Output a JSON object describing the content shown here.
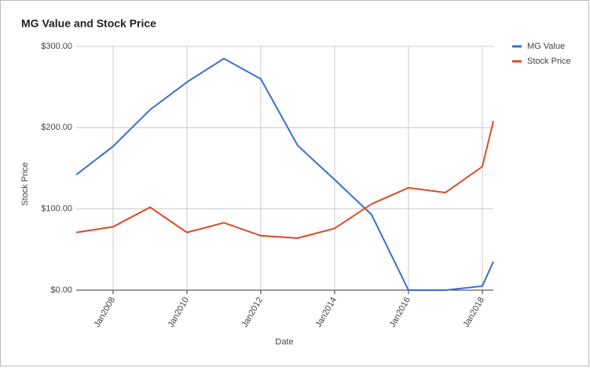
{
  "chart_data": {
    "type": "line",
    "title": "MG Value and Stock Price",
    "x_label": "Date",
    "y_label": "Stock Price",
    "x": [
      2007,
      2008,
      2009,
      2010,
      2011,
      2012,
      2013,
      2014,
      2015,
      2016,
      2017,
      2018,
      2018.3
    ],
    "series": [
      {
        "name": "MG Value",
        "color": "#3c6fd0",
        "values": [
          142,
          177,
          222,
          256,
          285,
          260,
          178,
          136,
          93,
          0,
          0,
          5,
          35
        ]
      },
      {
        "name": "Stock Price",
        "color": "#dc4a26",
        "values": [
          71,
          78,
          102,
          71,
          83,
          67,
          64,
          76,
          106,
          126,
          120,
          152,
          208
        ]
      }
    ],
    "xlim": [
      2007,
      2018.3
    ],
    "xticks": [
      {
        "value": 2008,
        "label": "Jan2008"
      },
      {
        "value": 2010,
        "label": "Jan2010"
      },
      {
        "value": 2012,
        "label": "Jan2012"
      },
      {
        "value": 2014,
        "label": "Jan2014"
      },
      {
        "value": 2016,
        "label": "Jan2016"
      },
      {
        "value": 2018,
        "label": "Jan2018"
      }
    ],
    "ylim": [
      0,
      300
    ],
    "yticks": [
      {
        "value": 0,
        "label": "$0.00"
      },
      {
        "value": 100,
        "label": "$100.00"
      },
      {
        "value": 200,
        "label": "$200.00"
      },
      {
        "value": 300,
        "label": "$300.00"
      }
    ],
    "grid": true,
    "legend": "right"
  }
}
